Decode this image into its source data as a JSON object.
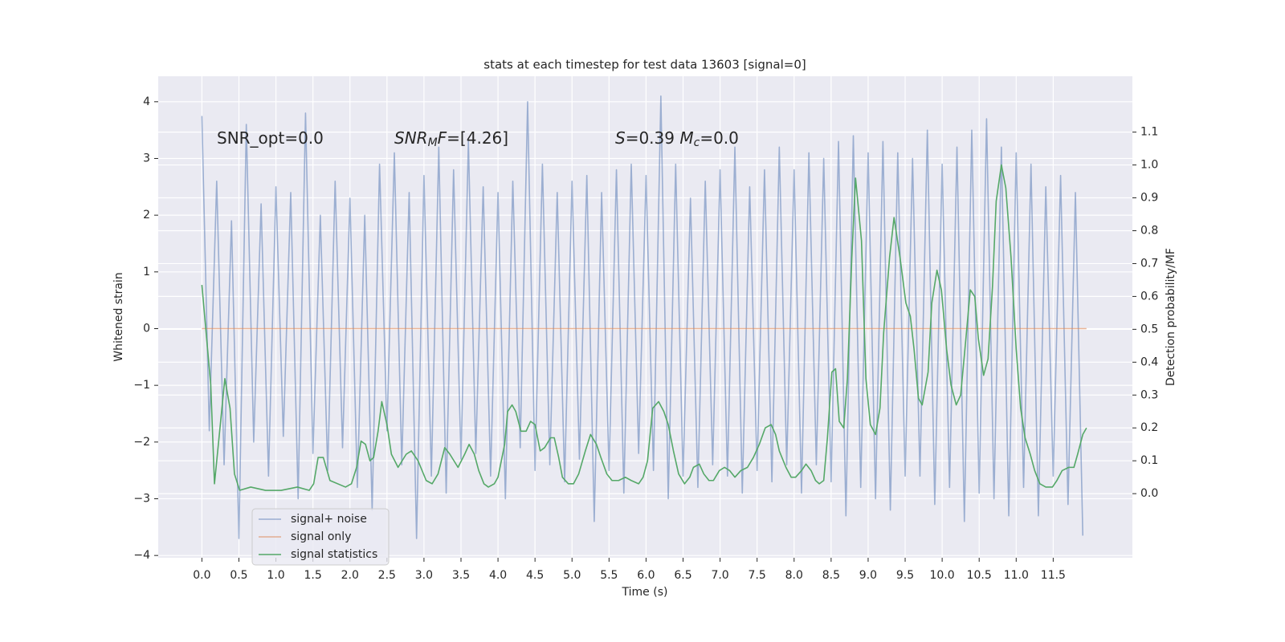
{
  "chart_data": {
    "type": "line",
    "title": "stats at each timestep for test data 13603 [signal=0]",
    "xlabel": "Time (s)",
    "ylabel": "Whitened strain",
    "y2label": "Detection probability/MF",
    "annotations": [
      [
        {
          "text": "SNR_opt=0.0",
          "style": "normal"
        }
      ],
      [
        {
          "text": "SNR",
          "style": "italic"
        },
        {
          "text": "M",
          "style": "sub"
        },
        {
          "text": "F",
          "style": "italic"
        },
        {
          "text": "=[4.26]",
          "style": "normal"
        }
      ],
      [
        {
          "text": "S",
          "style": "italic"
        },
        {
          "text": "=0.39   ",
          "style": "normal"
        },
        {
          "text": "M",
          "style": "italic"
        },
        {
          "text": "c",
          "style": "sub"
        },
        {
          "text": "=0.0",
          "style": "normal"
        }
      ]
    ],
    "xlim": [
      -0.59,
      12.57
    ],
    "ylim": [
      -4.04,
      4.45
    ],
    "y2lim": [
      -0.195,
      1.27
    ],
    "xticks": [
      {
        "value": 0,
        "label": "0.0"
      },
      {
        "value": 0.5,
        "label": "0.5"
      },
      {
        "value": 1,
        "label": "1.0"
      },
      {
        "value": 1.5,
        "label": "1.5"
      },
      {
        "value": 2,
        "label": "2.0"
      },
      {
        "value": 2.5,
        "label": "2.5"
      },
      {
        "value": 3,
        "label": "3.0"
      },
      {
        "value": 3.5,
        "label": "3.5"
      },
      {
        "value": 4,
        "label": "4.0"
      },
      {
        "value": 4.5,
        "label": "4.5"
      },
      {
        "value": 5,
        "label": "5.0"
      },
      {
        "value": 5.5,
        "label": "5.5"
      },
      {
        "value": 6,
        "label": "6.0"
      },
      {
        "value": 6.5,
        "label": "6.5"
      },
      {
        "value": 7,
        "label": "7.0"
      },
      {
        "value": 7.5,
        "label": "7.5"
      },
      {
        "value": 8,
        "label": "8.0"
      },
      {
        "value": 8.5,
        "label": "8.5"
      },
      {
        "value": 9,
        "label": "9.0"
      },
      {
        "value": 9.5,
        "label": "9.5"
      },
      {
        "value": 10,
        "label": "10.0"
      },
      {
        "value": 10.5,
        "label": "10.5"
      },
      {
        "value": 11,
        "label": "11.0"
      },
      {
        "value": 11.5,
        "label": "11.5"
      }
    ],
    "yticks": [
      {
        "value": -4,
        "label": "−4"
      },
      {
        "value": -3,
        "label": "−3"
      },
      {
        "value": -2,
        "label": "−2"
      },
      {
        "value": -1,
        "label": "−1"
      },
      0,
      1,
      2,
      3,
      4
    ],
    "y2ticks": [
      {
        "value": 0,
        "label": "0.0"
      },
      {
        "value": 0.1,
        "label": "0.1"
      },
      {
        "value": 0.2,
        "label": "0.2"
      },
      {
        "value": 0.3,
        "label": "0.3"
      },
      {
        "value": 0.4,
        "label": "0.4"
      },
      {
        "value": 0.5,
        "label": "0.5"
      },
      {
        "value": 0.6,
        "label": "0.6"
      },
      {
        "value": 0.7,
        "label": "0.7"
      },
      {
        "value": 0.8,
        "label": "0.8"
      },
      {
        "value": 0.9,
        "label": "0.9"
      },
      {
        "value": 1,
        "label": "1.0"
      },
      {
        "value": 1.1,
        "label": "1.1"
      }
    ],
    "grid": true,
    "legend": "lower left",
    "series": [
      {
        "name": "signal+ noise",
        "color": "#4c72b0",
        "opacity": 0.5,
        "axis": "y",
        "x": [
          0,
          0.1,
          0.2,
          0.3,
          0.4,
          0.5,
          0.6,
          0.7,
          0.8,
          0.9,
          1,
          1.1,
          1.2,
          1.3,
          1.4,
          1.5,
          1.6,
          1.7,
          1.8,
          1.9,
          2,
          2.1,
          2.2,
          2.3,
          2.4,
          2.5,
          2.6,
          2.7,
          2.8,
          2.9,
          3,
          3.1,
          3.2,
          3.3,
          3.4,
          3.5,
          3.6,
          3.7,
          3.8,
          3.9,
          4,
          4.1,
          4.2,
          4.3,
          4.4,
          4.5,
          4.6,
          4.7,
          4.8,
          4.9,
          5,
          5.1,
          5.2,
          5.3,
          5.4,
          5.5,
          5.6,
          5.7,
          5.8,
          5.9,
          6,
          6.1,
          6.2,
          6.3,
          6.4,
          6.5,
          6.6,
          6.7,
          6.8,
          6.9,
          7,
          7.1,
          7.2,
          7.3,
          7.4,
          7.5,
          7.6,
          7.7,
          7.8,
          7.9,
          8,
          8.1,
          8.2,
          8.3,
          8.4,
          8.5,
          8.6,
          8.7,
          8.8,
          8.9,
          9,
          9.1,
          9.2,
          9.3,
          9.4,
          9.5,
          9.6,
          9.7,
          9.8,
          9.9,
          10,
          10.1,
          10.2,
          10.3,
          10.4,
          10.5,
          10.6,
          10.7,
          10.8,
          10.9,
          11,
          11.1,
          11.2,
          11.3,
          11.4,
          11.5,
          11.6,
          11.7,
          11.8,
          11.9
        ],
        "values": [
          3.75,
          -1.8,
          2.6,
          -2.4,
          1.9,
          -3.7,
          3.6,
          -2.0,
          2.2,
          -2.6,
          2.5,
          -1.9,
          2.4,
          -3.0,
          3.8,
          -2.2,
          2.0,
          -2.5,
          2.6,
          -2.1,
          2.3,
          -2.8,
          2.0,
          -3.2,
          2.9,
          -1.8,
          3.1,
          -2.4,
          2.4,
          -3.7,
          2.7,
          -2.6,
          3.2,
          -2.9,
          2.8,
          -2.3,
          3.3,
          -2.2,
          2.5,
          -2.6,
          2.4,
          -3.0,
          2.6,
          -2.1,
          4.0,
          -2.5,
          2.9,
          -2.4,
          2.4,
          -2.7,
          2.6,
          -2.3,
          2.7,
          -3.4,
          2.4,
          -2.5,
          2.8,
          -2.9,
          2.9,
          -2.2,
          2.7,
          -2.5,
          4.1,
          -3.0,
          2.9,
          -2.6,
          2.3,
          -2.8,
          2.6,
          -2.4,
          2.8,
          -2.6,
          3.2,
          -2.9,
          2.5,
          -2.5,
          2.8,
          -2.7,
          3.2,
          -2.4,
          2.8,
          -2.9,
          3.1,
          -2.4,
          3.0,
          -2.7,
          3.3,
          -3.3,
          3.4,
          -2.8,
          3.1,
          -3.0,
          3.3,
          -3.2,
          3.1,
          -2.6,
          3.0,
          -2.6,
          3.5,
          -3.1,
          2.9,
          -2.8,
          3.2,
          -3.4,
          3.5,
          -2.9,
          3.7,
          -3.0,
          3.2,
          -3.3,
          3.1,
          -2.8,
          2.9,
          -3.3,
          2.5,
          -2.6,
          2.7,
          -3.1,
          2.4,
          -3.65
        ]
      },
      {
        "name": "signal only",
        "color": "#dd8452",
        "opacity": 0.6,
        "axis": "y",
        "x": [
          0,
          11.95
        ],
        "values": [
          0,
          0
        ]
      },
      {
        "name": "signal statistics",
        "color": "#55a868",
        "opacity": 1,
        "axis": "y2",
        "x": [
          0,
          0.12,
          0.17,
          0.31,
          0.38,
          0.44,
          0.51,
          0.66,
          0.86,
          1.07,
          1.29,
          1.45,
          1.51,
          1.57,
          1.64,
          1.73,
          1.94,
          2.02,
          2.09,
          2.15,
          2.21,
          2.27,
          2.32,
          2.38,
          2.43,
          2.5,
          2.56,
          2.65,
          2.76,
          2.83,
          2.92,
          3.03,
          3.11,
          3.19,
          3.28,
          3.35,
          3.46,
          3.55,
          3.61,
          3.68,
          3.74,
          3.81,
          3.87,
          3.95,
          4,
          4.09,
          4.13,
          4.19,
          4.24,
          4.31,
          4.38,
          4.44,
          4.5,
          4.57,
          4.63,
          4.71,
          4.76,
          4.82,
          4.87,
          4.95,
          5.02,
          5.09,
          5.18,
          5.25,
          5.33,
          5.39,
          5.47,
          5.54,
          5.63,
          5.72,
          5.8,
          5.9,
          5.96,
          6.02,
          6.09,
          6.17,
          6.24,
          6.3,
          6.37,
          6.44,
          6.52,
          6.59,
          6.64,
          6.72,
          6.78,
          6.85,
          6.91,
          6.99,
          7.06,
          7.13,
          7.2,
          7.28,
          7.37,
          7.45,
          7.53,
          7.61,
          7.69,
          7.75,
          7.8,
          7.89,
          7.96,
          8.02,
          8.1,
          8.16,
          8.23,
          8.29,
          8.34,
          8.4,
          8.45,
          8.51,
          8.56,
          8.61,
          8.67,
          8.72,
          8.78,
          8.83,
          8.91,
          8.97,
          9.03,
          9.1,
          9.16,
          9.21,
          9.29,
          9.35,
          9.43,
          9.51,
          9.57,
          9.62,
          9.68,
          9.73,
          9.81,
          9.86,
          9.93,
          9.99,
          10.06,
          10.12,
          10.19,
          10.25,
          10.32,
          10.38,
          10.44,
          10.49,
          10.56,
          10.62,
          10.68,
          10.73,
          10.8,
          10.86,
          10.93,
          11,
          11.06,
          11.12,
          11.19,
          11.25,
          11.32,
          11.4,
          11.49,
          11.55,
          11.62,
          11.71,
          11.78,
          11.83,
          11.9,
          11.95
        ],
        "values": [
          0.635,
          0.33,
          0.03,
          0.35,
          0.26,
          0.06,
          0.01,
          0.02,
          0.01,
          0.01,
          0.02,
          0.01,
          0.03,
          0.11,
          0.11,
          0.04,
          0.02,
          0.03,
          0.08,
          0.16,
          0.15,
          0.1,
          0.11,
          0.19,
          0.28,
          0.21,
          0.12,
          0.08,
          0.12,
          0.13,
          0.1,
          0.04,
          0.03,
          0.06,
          0.14,
          0.12,
          0.08,
          0.12,
          0.15,
          0.12,
          0.07,
          0.03,
          0.02,
          0.03,
          0.05,
          0.15,
          0.25,
          0.27,
          0.25,
          0.19,
          0.19,
          0.22,
          0.21,
          0.13,
          0.14,
          0.17,
          0.17,
          0.11,
          0.05,
          0.03,
          0.03,
          0.06,
          0.13,
          0.18,
          0.15,
          0.11,
          0.06,
          0.04,
          0.04,
          0.05,
          0.04,
          0.03,
          0.05,
          0.1,
          0.26,
          0.28,
          0.25,
          0.21,
          0.13,
          0.06,
          0.03,
          0.05,
          0.08,
          0.09,
          0.06,
          0.04,
          0.04,
          0.07,
          0.08,
          0.07,
          0.05,
          0.07,
          0.08,
          0.11,
          0.15,
          0.2,
          0.21,
          0.18,
          0.13,
          0.08,
          0.05,
          0.05,
          0.07,
          0.09,
          0.07,
          0.04,
          0.03,
          0.04,
          0.17,
          0.37,
          0.38,
          0.22,
          0.2,
          0.35,
          0.72,
          0.96,
          0.77,
          0.35,
          0.21,
          0.18,
          0.26,
          0.49,
          0.72,
          0.84,
          0.72,
          0.58,
          0.54,
          0.44,
          0.29,
          0.27,
          0.37,
          0.58,
          0.68,
          0.62,
          0.44,
          0.33,
          0.27,
          0.3,
          0.47,
          0.62,
          0.6,
          0.47,
          0.36,
          0.41,
          0.63,
          0.89,
          1.0,
          0.93,
          0.72,
          0.44,
          0.26,
          0.17,
          0.12,
          0.07,
          0.03,
          0.02,
          0.02,
          0.04,
          0.07,
          0.08,
          0.08,
          0.12,
          0.18,
          0.2
        ]
      }
    ]
  }
}
